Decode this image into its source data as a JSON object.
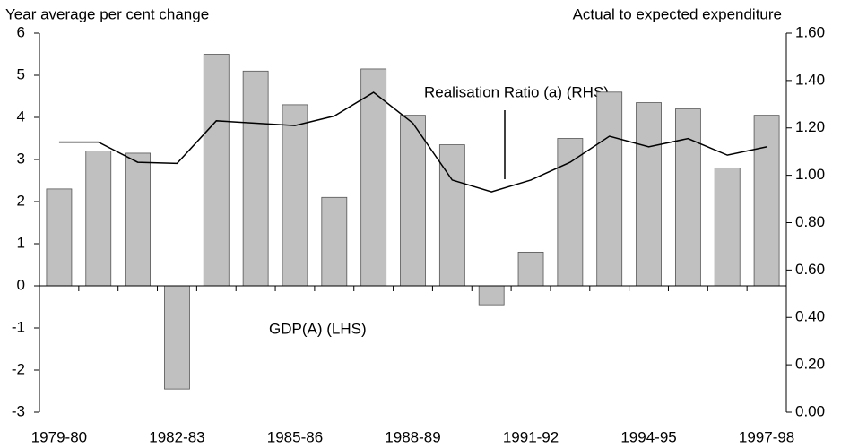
{
  "chart_data": {
    "type": "bar-line",
    "y_title": "Year average per cent change",
    "y2_title": "Actual to expected expenditure",
    "categories": [
      "1979-80",
      null,
      null,
      "1982-83",
      null,
      null,
      "1985-86",
      null,
      null,
      "1988-89",
      null,
      null,
      "1991-92",
      null,
      null,
      "1994-95",
      null,
      null,
      "1997-98"
    ],
    "series": [
      {
        "name": "GDP(A) (LHS)",
        "kind": "bar",
        "color": "#c0c0c0",
        "values": [
          2.3,
          3.2,
          3.15,
          -2.45,
          5.5,
          5.1,
          4.3,
          2.1,
          5.15,
          4.05,
          3.35,
          -0.45,
          0.8,
          3.5,
          4.6,
          4.35,
          4.2,
          2.8,
          4.05
        ]
      },
      {
        "name": "Realisation Ratio (a) (RHS)",
        "kind": "line",
        "axis": "y2",
        "color": "#000000",
        "values": [
          1.14,
          1.14,
          1.055,
          1.05,
          1.23,
          1.22,
          1.21,
          1.25,
          1.35,
          1.22,
          0.98,
          0.93,
          0.98,
          1.055,
          1.165,
          1.12,
          1.155,
          1.085,
          1.12
        ]
      }
    ],
    "ylim": [
      -3,
      6
    ],
    "yticks": [
      -3,
      -2,
      -1,
      0,
      1,
      2,
      3,
      4,
      5,
      6
    ],
    "y2lim": [
      0,
      1.6
    ],
    "y2ticks": [
      {
        "value": 0,
        "label": "0.00"
      },
      {
        "value": 0.2,
        "label": "0.20"
      },
      {
        "value": 0.4,
        "label": "0.40"
      },
      {
        "value": 0.6,
        "label": "0.60"
      },
      {
        "value": 0.8,
        "label": "0.80"
      },
      {
        "value": 1,
        "label": "1.00"
      },
      {
        "value": 1.2,
        "label": "1.20"
      },
      {
        "value": 1.4,
        "label": "1.40"
      },
      {
        "value": 1.6,
        "label": "1.60"
      }
    ]
  }
}
